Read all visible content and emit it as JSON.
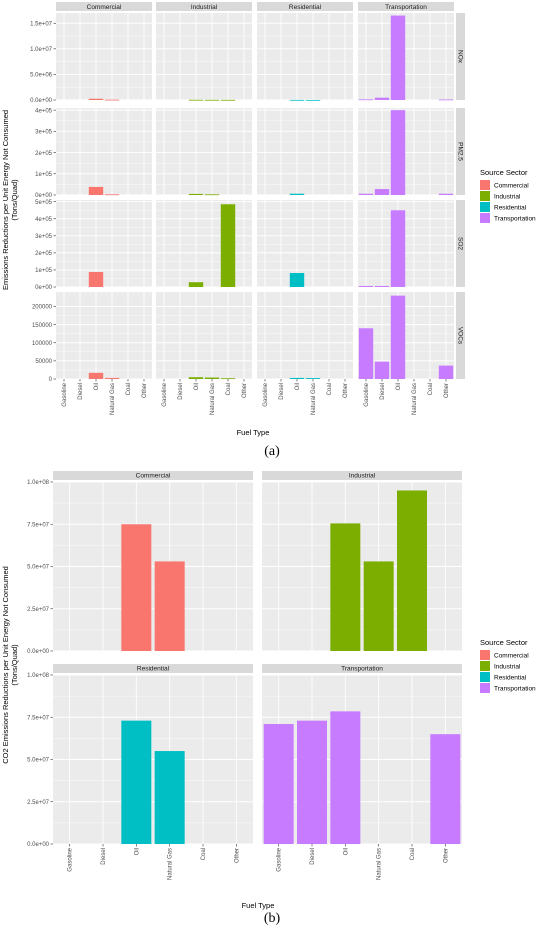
{
  "figure": {
    "caption_a": "(a)",
    "caption_b": "(b)"
  },
  "colors": {
    "Commercial": "#F8766D",
    "Industrial": "#7CAE00",
    "Residential": "#00BFC4",
    "Transportation": "#C77CFF",
    "panel_bg": "#EBEBEB",
    "strip_bg": "#D9D9D9",
    "grid": "#FFFFFF"
  },
  "chart_data": [
    {
      "type": "bar",
      "facets": "pollutant rows x source sector columns",
      "sectors": [
        "Commercial",
        "Industrial",
        "Residential",
        "Transportation"
      ],
      "pollutants": [
        "NOx",
        "PM2.5",
        "SO2",
        "VOCs"
      ],
      "categories": [
        "Gasoline",
        "Diesel",
        "Oil",
        "Natural Gas",
        "Coal",
        "Other"
      ],
      "xlabel": "Fuel Type",
      "ylabel": "Emissions Reductions per Unit Energy Not Consumed",
      "ylabel2": "(Tons/Quad)",
      "legend_title": "Source Sector",
      "legend_position": "right",
      "grid": true,
      "rows": [
        {
          "pollutant": "NOx",
          "ylim": [
            0,
            17000000
          ],
          "yticks": [
            0,
            5000000,
            10000000,
            15000000
          ],
          "ytick_labels": [
            "0.0e+00",
            "5.0e+06",
            "1.0e+07",
            "1.5e+07"
          ],
          "values": {
            "Commercial": [
              0,
              0,
              250000,
              60000,
              0,
              0
            ],
            "Industrial": [
              0,
              0,
              40000,
              30000,
              25000,
              0
            ],
            "Residential": [
              0,
              0,
              20000,
              10000,
              0,
              0
            ],
            "Transportation": [
              120000,
              450000,
              16500000,
              0,
              0,
              100000
            ]
          }
        },
        {
          "pollutant": "PM2.5",
          "ylim": [
            0,
            410000
          ],
          "yticks": [
            0,
            100000,
            200000,
            300000,
            400000
          ],
          "ytick_labels": [
            "0e+00",
            "1e+05",
            "2e+05",
            "3e+05",
            "4e+05"
          ],
          "values": {
            "Commercial": [
              0,
              0,
              38000,
              3000,
              0,
              0
            ],
            "Industrial": [
              0,
              0,
              5000,
              3000,
              0,
              0
            ],
            "Residential": [
              0,
              0,
              6000,
              0,
              0,
              0
            ],
            "Transportation": [
              6000,
              28000,
              400000,
              0,
              0,
              6000
            ]
          }
        },
        {
          "pollutant": "SO2",
          "ylim": [
            0,
            510000
          ],
          "yticks": [
            0,
            100000,
            200000,
            300000,
            400000,
            500000
          ],
          "ytick_labels": [
            "0e+00",
            "1e+05",
            "2e+05",
            "3e+05",
            "4e+05",
            "5e+05"
          ],
          "values": {
            "Commercial": [
              0,
              0,
              88000,
              0,
              0,
              0
            ],
            "Industrial": [
              0,
              0,
              28000,
              0,
              485000,
              0
            ],
            "Residential": [
              0,
              0,
              82000,
              0,
              0,
              0
            ],
            "Transportation": [
              6000,
              6000,
              450000,
              0,
              0,
              0
            ]
          }
        },
        {
          "pollutant": "VOCs",
          "ylim": [
            0,
            240000
          ],
          "yticks": [
            0,
            50000,
            100000,
            150000,
            200000
          ],
          "ytick_labels": [
            "0",
            "50000",
            "100000",
            "150000",
            "200000"
          ],
          "values": {
            "Commercial": [
              0,
              0,
              17000,
              3000,
              0,
              0
            ],
            "Industrial": [
              0,
              0,
              5000,
              4000,
              2000,
              0
            ],
            "Residential": [
              0,
              0,
              3000,
              2500,
              0,
              0
            ],
            "Transportation": [
              140000,
              48000,
              230000,
              0,
              0,
              37000
            ]
          }
        }
      ]
    },
    {
      "type": "bar",
      "facets": "source sector panels (2 x 2)",
      "categories": [
        "Gasoline",
        "Diesel",
        "Oil",
        "Natural Gas",
        "Coal",
        "Other"
      ],
      "xlabel": "Fuel Type",
      "ylabel": "CO2 Emissions Reductions per Unit Energy Not Consumed",
      "ylabel2": "(Tons/Quad)",
      "legend_title": "Source Sector",
      "legend_position": "right",
      "grid": true,
      "ylim": [
        0,
        100000000
      ],
      "yticks": [
        0,
        25000000,
        50000000,
        75000000,
        100000000
      ],
      "ytick_labels": [
        "0.0e+00",
        "2.5e+07",
        "5.0e+07",
        "7.5e+07",
        "1.0e+08"
      ],
      "panels": [
        {
          "sector": "Commercial",
          "values": [
            0,
            0,
            75000000,
            53000000,
            0,
            0
          ]
        },
        {
          "sector": "Industrial",
          "values": [
            0,
            0,
            75500000,
            53000000,
            95000000,
            0
          ]
        },
        {
          "sector": "Residential",
          "values": [
            0,
            0,
            73000000,
            55000000,
            0,
            0
          ]
        },
        {
          "sector": "Transportation",
          "values": [
            71000000,
            73000000,
            78500000,
            0,
            0,
            65000000
          ]
        }
      ]
    }
  ]
}
